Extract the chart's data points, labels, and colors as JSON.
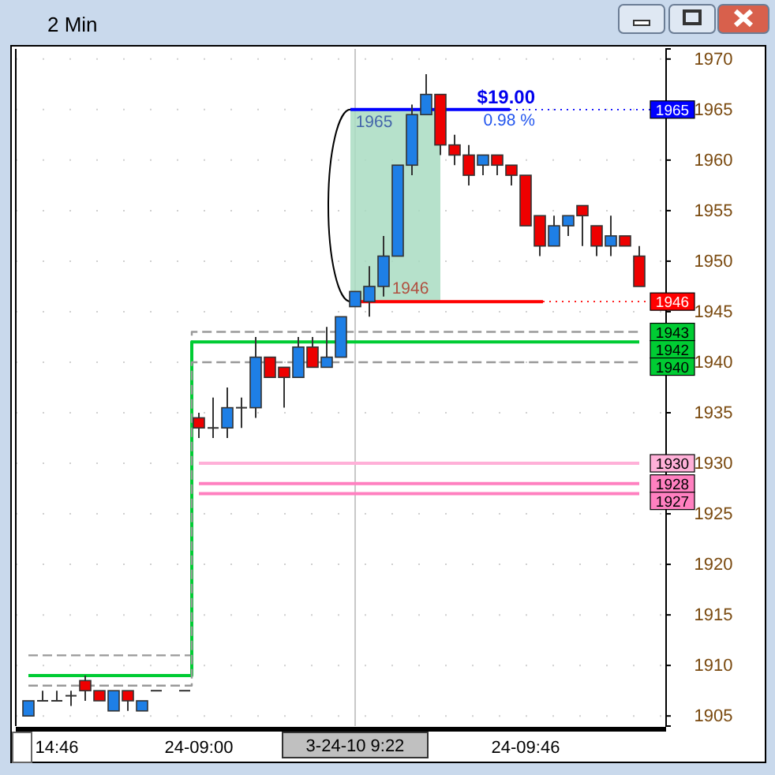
{
  "chart_data": {
    "type": "candlestick",
    "title": "2 Min",
    "categories": [
      null,
      null,
      "14:46",
      null,
      null,
      null,
      null,
      null,
      null,
      null,
      null,
      null,
      "24-09:00",
      null,
      null,
      null,
      null,
      null,
      null,
      null,
      null,
      null,
      null,
      null,
      null,
      null,
      null,
      null,
      null,
      null,
      null,
      null,
      null,
      null,
      null,
      "24-09:46",
      null,
      null,
      null,
      null,
      null,
      null,
      null,
      null
    ],
    "ohlc": [
      [
        1905,
        1906.5,
        1905,
        1906.5
      ],
      [
        1906.5,
        1907.5,
        1906.5,
        1906.5
      ],
      [
        1906.5,
        1907.5,
        1906.5,
        1906.5
      ],
      [
        1907,
        1907.5,
        1906,
        1907
      ],
      [
        1908.5,
        1909,
        1906.5,
        1907.5
      ],
      [
        1907.5,
        1907.5,
        1906.5,
        1906.5
      ],
      [
        1905.5,
        1907.5,
        1905.5,
        1907.5
      ],
      [
        1907.5,
        1907.5,
        1905.5,
        1906.5
      ],
      [
        1905.5,
        1906.5,
        1905.5,
        1906.5
      ],
      [
        1907.5,
        1907.5,
        1907.5,
        1907.5
      ],
      null,
      [
        1907.5,
        1907.5,
        1907.5,
        1907.5
      ],
      [
        1934.5,
        1935,
        1932.5,
        1933.5
      ],
      [
        1933.5,
        1936.5,
        1932.5,
        1933.5
      ],
      [
        1933.5,
        1937.5,
        1932.5,
        1935.5
      ],
      [
        1935.5,
        1936.5,
        1933.5,
        1935.5
      ],
      [
        1935.5,
        1942.5,
        1934.5,
        1940.5
      ],
      [
        1940.5,
        1940.5,
        1938.5,
        1938.5
      ],
      [
        1939.5,
        1939.5,
        1935.5,
        1938.5
      ],
      [
        1938.5,
        1942.5,
        1938.5,
        1941.5
      ],
      [
        1941.5,
        1942.5,
        1939.5,
        1939.5
      ],
      [
        1939.5,
        1943.5,
        1939.5,
        1940.5
      ],
      [
        1940.5,
        1944.5,
        1940.5,
        1944.5
      ],
      [
        1945.5,
        1947,
        1945.5,
        1947
      ],
      [
        1946,
        1949.5,
        1944.5,
        1947.5
      ],
      [
        1947.5,
        1952.5,
        1946.5,
        1950.5
      ],
      [
        1950.5,
        1959.5,
        1950.5,
        1959.5
      ],
      [
        1959.5,
        1965.5,
        1958.5,
        1964.5
      ],
      [
        1964.5,
        1968.5,
        1964.5,
        1966.5
      ],
      [
        1966.5,
        1966.5,
        1960.5,
        1961.5
      ],
      [
        1961.5,
        1962.5,
        1959.5,
        1960.5
      ],
      [
        1960.5,
        1961.5,
        1957.5,
        1958.5
      ],
      [
        1959.5,
        1960.5,
        1958.5,
        1960.5
      ],
      [
        1960.5,
        1960.5,
        1958.5,
        1959.5
      ],
      [
        1959.5,
        1959.5,
        1957.5,
        1958.5
      ],
      [
        1958.5,
        1958.5,
        1953.5,
        1953.5
      ],
      [
        1954.5,
        1954.5,
        1950.5,
        1951.5
      ],
      [
        1951.5,
        1954.5,
        1951.5,
        1953.5
      ],
      [
        1953.5,
        1954.5,
        1952.5,
        1954.5
      ],
      [
        1955.5,
        1955.5,
        1951.5,
        1954.5
      ],
      [
        1953.5,
        1953.5,
        1950.5,
        1951.5
      ],
      [
        1951.5,
        1954.5,
        1950.5,
        1952.5
      ],
      [
        1952.5,
        1952.5,
        1951.5,
        1951.5
      ],
      [
        1950.5,
        1951.5,
        1947.5,
        1947.5
      ]
    ],
    "colors": [
      "#1e7fe6",
      null,
      null,
      null,
      "#ee0000",
      "#ee0000",
      "#1e7fe6",
      "#ee0000",
      "#1e7fe6",
      null,
      null,
      null,
      "#ee0000",
      null,
      "#1e7fe6",
      null,
      "#1e7fe6",
      "#ee0000",
      "#ee0000",
      "#1e7fe6",
      "#ee0000",
      "#1e7fe6",
      "#1e7fe6",
      "#1e7fe6",
      "#1e7fe6",
      "#1e7fe6",
      "#1e7fe6",
      "#1e7fe6",
      "#1e7fe6",
      "#ee0000",
      "#ee0000",
      "#ee0000",
      "#1e7fe6",
      "#ee0000",
      "#ee0000",
      "#ee0000",
      "#ee0000",
      "#1e7fe6",
      "#1e7fe6",
      "#ee0000",
      "#ee0000",
      "#1e7fe6",
      "#ee0000",
      "#ee0000"
    ],
    "series": [
      {
        "type": "step",
        "color": "#999999",
        "line_style": "dashed",
        "values": [
          1911,
          1911,
          1911,
          1911,
          1911,
          1911,
          1911,
          1911,
          1911,
          1911,
          1911,
          1911,
          1943,
          1943,
          1943,
          1943,
          1943,
          1943,
          1943,
          1943,
          1943,
          1943,
          1943,
          1943,
          1943,
          1943,
          1943,
          1943,
          1943,
          1943,
          1943,
          1943,
          1943,
          1943,
          1943,
          1943,
          1943,
          1943,
          1943,
          1943,
          1943,
          1943,
          1943,
          1943
        ],
        "value_labels": [
          null,
          null,
          null,
          null,
          null,
          null,
          null,
          null,
          null,
          null,
          null,
          null,
          null,
          null,
          null,
          null,
          null,
          null,
          null,
          null,
          null,
          null,
          null,
          null,
          null,
          null,
          null,
          null,
          null,
          null,
          null,
          null,
          null,
          null,
          null,
          null,
          null,
          null,
          null,
          null,
          null,
          null,
          null,
          "1943"
        ]
      },
      {
        "type": "step",
        "color": "#00cc33",
        "line_style": "solid",
        "values": [
          1909,
          1909,
          1909,
          1909,
          1909,
          1909,
          1909,
          1909,
          1909,
          1909,
          1909,
          1909,
          1942,
          1942,
          1942,
          1942,
          1942,
          1942,
          1942,
          1942,
          1942,
          1942,
          1942,
          1942,
          1942,
          1942,
          1942,
          1942,
          1942,
          1942,
          1942,
          1942,
          1942,
          1942,
          1942,
          1942,
          1942,
          1942,
          1942,
          1942,
          1942,
          1942,
          1942,
          1942
        ],
        "value_labels": [
          null,
          null,
          null,
          null,
          null,
          null,
          null,
          null,
          null,
          null,
          null,
          null,
          null,
          null,
          null,
          null,
          null,
          null,
          null,
          null,
          null,
          null,
          null,
          null,
          null,
          null,
          null,
          null,
          null,
          null,
          null,
          null,
          null,
          null,
          null,
          null,
          null,
          null,
          null,
          null,
          null,
          null,
          null,
          "1942"
        ]
      },
      {
        "type": "step",
        "color": "#999999",
        "line_style": "dashed",
        "values": [
          1908,
          1908,
          1908,
          1908,
          1908,
          1908,
          1908,
          1908,
          1908,
          1908,
          1908,
          1908,
          1940,
          1940,
          1940,
          1940,
          1940,
          1940,
          1940,
          1940,
          1940,
          1940,
          1940,
          1940,
          1940,
          1940,
          1940,
          1940,
          1940,
          1940,
          1940,
          1940,
          1940,
          1940,
          1940,
          1940,
          1940,
          1940,
          1940,
          1940,
          1940,
          1940,
          1940,
          1940
        ],
        "value_labels": [
          null,
          null,
          null,
          null,
          null,
          null,
          null,
          null,
          null,
          null,
          null,
          null,
          null,
          null,
          null,
          null,
          null,
          null,
          null,
          null,
          null,
          null,
          null,
          null,
          null,
          null,
          null,
          null,
          null,
          null,
          null,
          null,
          null,
          null,
          null,
          null,
          null,
          null,
          null,
          null,
          null,
          null,
          null,
          "1940"
        ]
      },
      {
        "type": "step",
        "color": "#ffb0d8",
        "line_style": "solid",
        "values": [
          null,
          null,
          null,
          null,
          null,
          null,
          null,
          null,
          null,
          null,
          null,
          null,
          1930,
          1930,
          1930,
          1930,
          1930,
          1930,
          1930,
          1930,
          1930,
          1930,
          1930,
          1930,
          1930,
          1930,
          1930,
          1930,
          1930,
          1930,
          1930,
          1930,
          1930,
          1930,
          1930,
          1930,
          1930,
          1930,
          1930,
          1930,
          1930,
          1930,
          1930,
          1930
        ],
        "value_labels": [
          null,
          null,
          null,
          null,
          null,
          null,
          null,
          null,
          null,
          null,
          null,
          null,
          null,
          null,
          null,
          null,
          null,
          null,
          null,
          null,
          null,
          null,
          null,
          null,
          null,
          null,
          null,
          null,
          null,
          null,
          null,
          null,
          null,
          null,
          null,
          null,
          null,
          null,
          null,
          null,
          null,
          null,
          null,
          "1930"
        ]
      },
      {
        "type": "step",
        "color": "#ff80c0",
        "line_style": "solid",
        "values": [
          null,
          null,
          null,
          null,
          null,
          null,
          null,
          null,
          null,
          null,
          null,
          null,
          1928,
          1928,
          1928,
          1928,
          1928,
          1928,
          1928,
          1928,
          1928,
          1928,
          1928,
          1928,
          1928,
          1928,
          1928,
          1928,
          1928,
          1928,
          1928,
          1928,
          1928,
          1928,
          1928,
          1928,
          1928,
          1928,
          1928,
          1928,
          1928,
          1928,
          1928,
          1928
        ],
        "value_labels": [
          null,
          null,
          null,
          null,
          null,
          null,
          null,
          null,
          null,
          null,
          null,
          null,
          null,
          null,
          null,
          null,
          null,
          null,
          null,
          null,
          null,
          null,
          null,
          null,
          null,
          null,
          null,
          null,
          null,
          null,
          null,
          null,
          null,
          null,
          null,
          null,
          null,
          null,
          null,
          null,
          null,
          null,
          null,
          "1928"
        ]
      },
      {
        "type": "step",
        "color": "#ff80c0",
        "line_style": "solid",
        "values": [
          null,
          null,
          null,
          null,
          null,
          null,
          null,
          null,
          null,
          null,
          null,
          null,
          1927,
          1927,
          1927,
          1927,
          1927,
          1927,
          1927,
          1927,
          1927,
          1927,
          1927,
          1927,
          1927,
          1927,
          1927,
          1927,
          1927,
          1927,
          1927,
          1927,
          1927,
          1927,
          1927,
          1927,
          1927,
          1927,
          1927,
          1927,
          1927,
          1927,
          1927,
          1927
        ],
        "value_labels": [
          null,
          null,
          null,
          null,
          null,
          null,
          null,
          null,
          null,
          null,
          null,
          null,
          null,
          null,
          null,
          null,
          null,
          null,
          null,
          null,
          null,
          null,
          null,
          null,
          null,
          null,
          null,
          null,
          null,
          null,
          null,
          null,
          null,
          null,
          null,
          null,
          null,
          null,
          null,
          null,
          null,
          null,
          null,
          "1927"
        ]
      }
    ],
    "ref_lines": [
      {
        "axis": "y",
        "value": 1965,
        "label": "1965",
        "color": "#0000ff"
      },
      {
        "axis": "y",
        "value": 1946,
        "label": "1946",
        "color": "#ff0000"
      }
    ],
    "annotations": [
      "$19.00",
      "0.98 %",
      {
        "text": "1965",
        "y": 1965
      },
      {
        "text": "1946",
        "y": 1946
      },
      "3-24-10 9:22"
    ],
    "ylim": [
      1904,
      1971
    ],
    "yticks": [
      1905,
      1910,
      1915,
      1920,
      1925,
      1930,
      1935,
      1940,
      1945,
      1950,
      1955,
      1960,
      1965,
      1970
    ],
    "grid": true
  }
}
